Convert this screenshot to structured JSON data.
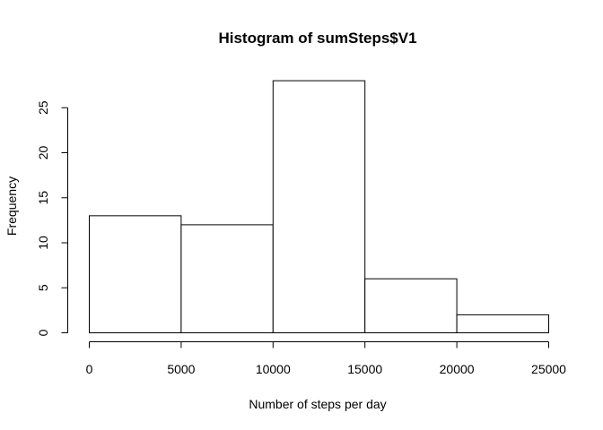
{
  "chart_data": {
    "type": "bar",
    "title": "Histogram of sumSteps$V1",
    "xlabel": "Number of steps per day",
    "ylabel": "Frequency",
    "bins": [
      {
        "from": 0,
        "to": 5000,
        "count": 13
      },
      {
        "from": 5000,
        "to": 10000,
        "count": 12
      },
      {
        "from": 10000,
        "to": 15000,
        "count": 28
      },
      {
        "from": 15000,
        "to": 20000,
        "count": 6
      },
      {
        "from": 20000,
        "to": 25000,
        "count": 2
      }
    ],
    "xlim": [
      0,
      25000
    ],
    "ylim": [
      0,
      28
    ],
    "x_ticks": [
      0,
      5000,
      10000,
      15000,
      20000,
      25000
    ],
    "y_ticks": [
      0,
      5,
      10,
      15,
      20,
      25
    ],
    "grid": false,
    "bar_fill": "#ffffff",
    "bar_stroke": "#000000"
  }
}
